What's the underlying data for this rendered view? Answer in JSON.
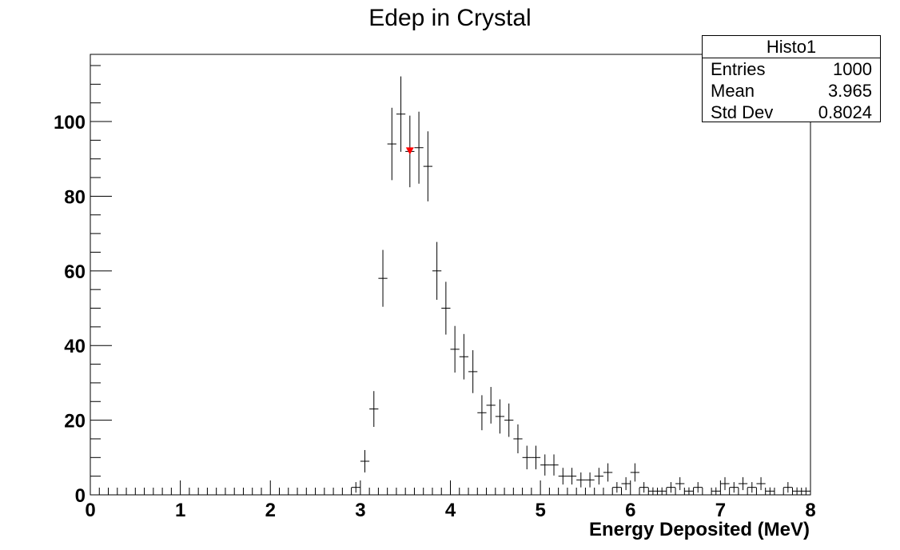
{
  "chart_data": {
    "type": "histogram",
    "title": "Edep in Crystal",
    "xlabel": "Energy Deposited (MeV)",
    "ylabel": "",
    "xlim": [
      0,
      8
    ],
    "ylim": [
      0,
      118
    ],
    "x_ticks": [
      "0",
      "1",
      "2",
      "3",
      "4",
      "5",
      "6",
      "7",
      "8"
    ],
    "y_ticks": [
      "0",
      "20",
      "40",
      "60",
      "80",
      "100"
    ],
    "bin_width": 0.1,
    "bins": {
      "x": [
        2.95,
        3.05,
        3.15,
        3.25,
        3.35,
        3.45,
        3.55,
        3.65,
        3.75,
        3.85,
        3.95,
        4.05,
        4.15,
        4.25,
        4.35,
        4.45,
        4.55,
        4.65,
        4.75,
        4.85,
        4.95,
        5.05,
        5.15,
        5.25,
        5.35,
        5.45,
        5.55,
        5.65,
        5.75,
        5.85,
        5.95,
        6.05,
        6.15,
        6.25,
        6.35,
        6.45,
        6.55,
        6.65,
        6.75,
        6.85,
        6.95,
        7.05,
        7.15,
        7.25,
        7.35,
        7.45,
        7.55,
        7.65,
        7.75,
        7.85,
        7.95
      ],
      "counts": [
        2,
        9,
        23,
        58,
        94,
        102,
        92,
        93,
        88,
        60,
        50,
        39,
        37,
        33,
        22,
        24,
        21,
        20,
        15,
        10,
        10,
        8,
        8,
        5,
        5,
        4,
        4,
        5,
        6,
        2,
        3,
        6,
        2,
        1,
        1,
        2,
        3,
        1,
        2,
        0,
        1,
        3,
        2,
        3,
        2,
        3,
        1,
        0,
        2,
        1,
        1
      ]
    },
    "marker": {
      "x": 3.55,
      "y": 92,
      "color": "#ff0000"
    },
    "stats": {
      "title": "Histo1",
      "rows": [
        {
          "label": "Entries",
          "value": "1000"
        },
        {
          "label": "Mean",
          "value": "3.965"
        },
        {
          "label": "Std Dev",
          "value": "0.8024"
        }
      ]
    },
    "grid": false,
    "colors": {
      "line": "#000000",
      "marker": "#ff0000"
    }
  }
}
